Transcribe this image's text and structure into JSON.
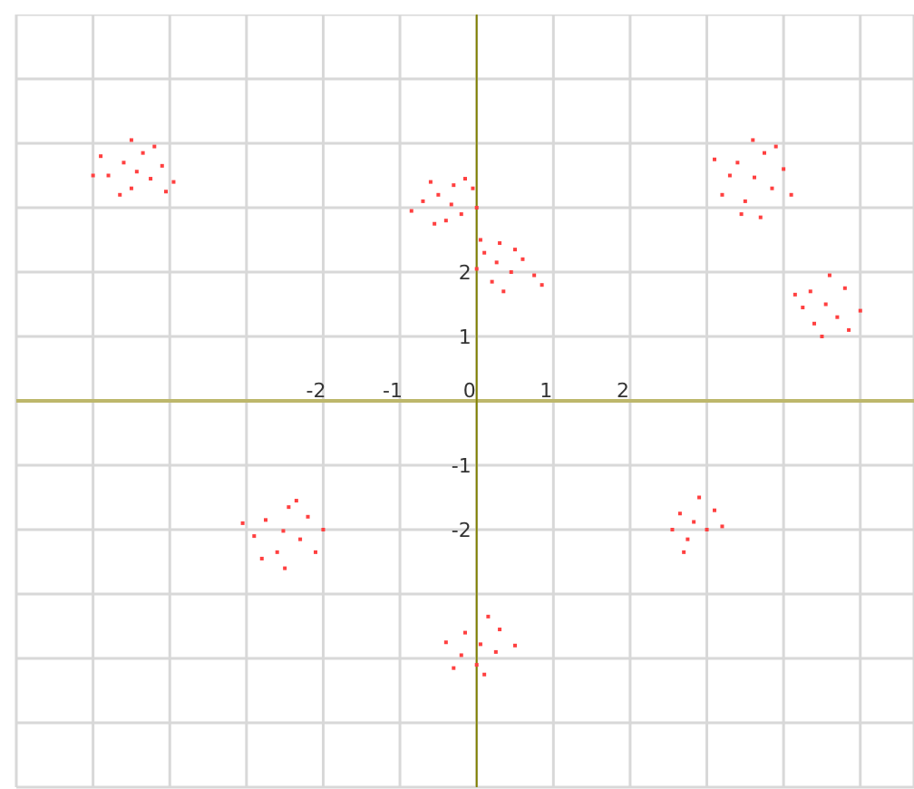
{
  "chart_data": {
    "type": "scatter",
    "xlim": [
      -6,
      5.7
    ],
    "ylim": [
      -6,
      6
    ],
    "xticks": [
      {
        "value": -6,
        "label": null
      },
      {
        "value": -5,
        "label": null
      },
      {
        "value": -4,
        "label": null
      },
      {
        "value": -3,
        "label": null
      },
      -2,
      -1,
      0,
      1,
      2,
      {
        "value": 3,
        "label": null
      },
      {
        "value": 4,
        "label": null
      },
      {
        "value": 5,
        "label": null
      }
    ],
    "yticks": [
      {
        "value": -6,
        "label": null
      },
      {
        "value": -5,
        "label": null
      },
      {
        "value": -4,
        "label": null
      },
      {
        "value": -3,
        "label": null
      },
      -2,
      -1,
      {
        "value": 0,
        "label": null
      },
      1,
      2,
      {
        "value": 3,
        "label": null
      },
      {
        "value": 4,
        "label": null
      },
      {
        "value": 5,
        "label": null
      },
      {
        "value": 6,
        "label": null
      }
    ],
    "grid": true,
    "marker": "square",
    "series": [
      {
        "color": "#ff4040",
        "x": [
          -4.43,
          -4.6,
          -4.25,
          -4.8,
          -4.1,
          -4.5,
          -4.35,
          -4.9,
          -3.95,
          -4.65,
          -4.2,
          -5.0,
          -4.05,
          -4.5,
          -0.33,
          -0.5,
          -0.2,
          -0.7,
          -0.05,
          -0.4,
          -0.15,
          -0.85,
          -0.55,
          0.0,
          -0.3,
          -0.6,
          0.26,
          0.1,
          0.45,
          0.3,
          0.6,
          0.0,
          0.2,
          0.5,
          0.75,
          0.35,
          0.05,
          0.85,
          3.62,
          3.4,
          3.85,
          3.5,
          3.3,
          3.75,
          4.0,
          3.2,
          3.6,
          4.1,
          3.45,
          3.9,
          3.1,
          3.7,
          4.55,
          4.35,
          4.7,
          4.4,
          4.8,
          4.25,
          4.6,
          5.0,
          4.5,
          4.85,
          4.15,
          -2.52,
          -2.75,
          -2.3,
          -2.6,
          -2.2,
          -2.9,
          -2.45,
          -2.1,
          -2.8,
          -3.05,
          -2.0,
          -2.5,
          -2.35,
          0.05,
          -0.15,
          0.25,
          -0.2,
          0.3,
          0.0,
          -0.4,
          0.5,
          0.15,
          -0.3,
          0.1,
          2.83,
          2.65,
          3.0,
          2.75,
          3.1,
          2.55,
          2.9,
          2.7,
          3.2
        ],
        "values": [
          3.56,
          3.7,
          3.45,
          3.5,
          3.65,
          3.3,
          3.85,
          3.8,
          3.4,
          3.2,
          3.95,
          3.5,
          3.25,
          4.05,
          3.05,
          3.2,
          2.9,
          3.1,
          3.3,
          2.8,
          3.45,
          2.95,
          2.75,
          3.0,
          3.35,
          3.4,
          2.15,
          2.3,
          2.0,
          2.45,
          2.2,
          2.05,
          1.85,
          2.35,
          1.95,
          1.7,
          2.5,
          1.8,
          3.47,
          3.7,
          3.3,
          3.1,
          3.5,
          3.85,
          3.6,
          3.2,
          4.05,
          3.2,
          2.9,
          3.95,
          3.75,
          2.85,
          1.5,
          1.7,
          1.3,
          1.2,
          1.75,
          1.45,
          1.95,
          1.4,
          1.0,
          1.1,
          1.65,
          -2.02,
          -1.85,
          -2.15,
          -2.35,
          -1.8,
          -2.1,
          -1.65,
          -2.35,
          -2.45,
          -1.9,
          -2.0,
          -2.6,
          -1.55,
          -3.78,
          -3.6,
          -3.9,
          -3.95,
          -3.55,
          -4.1,
          -3.75,
          -3.8,
          -3.35,
          -4.15,
          -4.25,
          -1.88,
          -1.75,
          -2.0,
          -2.15,
          -1.7,
          -2.0,
          -1.5,
          -2.35,
          -1.95
        ]
      }
    ]
  }
}
